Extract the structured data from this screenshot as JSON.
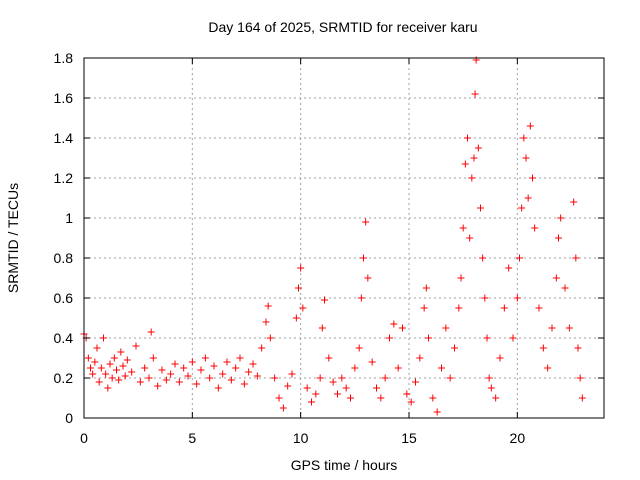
{
  "chart_data": {
    "type": "scatter",
    "title": "Day 164 of 2025, SRMTID for receiver karu",
    "xlabel": "GPS time / hours",
    "ylabel": "SRMTID / TECUs",
    "xlim": [
      0,
      24
    ],
    "ylim": [
      0,
      1.8
    ],
    "xticks": [
      0,
      5,
      10,
      15,
      20
    ],
    "xtick_labels": [
      "0",
      "5",
      "10",
      "15",
      "20"
    ],
    "yticks": [
      0,
      0.2,
      0.4,
      0.6,
      0.8,
      1.0,
      1.2,
      1.4,
      1.6,
      1.8
    ],
    "ytick_labels": [
      "0",
      "0.2",
      "0.4",
      "0.6",
      "0.8",
      "1",
      "1.2",
      "1.4",
      "1.6",
      "1.8"
    ],
    "grid": true,
    "marker": "+",
    "color": "#ff0000",
    "series": [
      {
        "name": "SRMTID",
        "points": [
          [
            0.0,
            0.42
          ],
          [
            0.1,
            0.4
          ],
          [
            0.2,
            0.3
          ],
          [
            0.3,
            0.25
          ],
          [
            0.4,
            0.22
          ],
          [
            0.5,
            0.28
          ],
          [
            0.6,
            0.35
          ],
          [
            0.7,
            0.18
          ],
          [
            0.8,
            0.25
          ],
          [
            0.9,
            0.4
          ],
          [
            1.0,
            0.22
          ],
          [
            1.1,
            0.15
          ],
          [
            1.2,
            0.27
          ],
          [
            1.3,
            0.2
          ],
          [
            1.4,
            0.3
          ],
          [
            1.5,
            0.24
          ],
          [
            1.6,
            0.19
          ],
          [
            1.7,
            0.33
          ],
          [
            1.8,
            0.26
          ],
          [
            1.9,
            0.21
          ],
          [
            2.0,
            0.29
          ],
          [
            2.2,
            0.23
          ],
          [
            2.4,
            0.36
          ],
          [
            2.6,
            0.18
          ],
          [
            2.8,
            0.25
          ],
          [
            3.0,
            0.2
          ],
          [
            3.1,
            0.43
          ],
          [
            3.2,
            0.3
          ],
          [
            3.4,
            0.16
          ],
          [
            3.6,
            0.24
          ],
          [
            3.8,
            0.19
          ],
          [
            4.0,
            0.22
          ],
          [
            4.2,
            0.27
          ],
          [
            4.4,
            0.18
          ],
          [
            4.6,
            0.25
          ],
          [
            4.8,
            0.21
          ],
          [
            5.0,
            0.28
          ],
          [
            5.2,
            0.17
          ],
          [
            5.4,
            0.24
          ],
          [
            5.6,
            0.3
          ],
          [
            5.8,
            0.2
          ],
          [
            6.0,
            0.26
          ],
          [
            6.2,
            0.15
          ],
          [
            6.4,
            0.22
          ],
          [
            6.6,
            0.28
          ],
          [
            6.8,
            0.19
          ],
          [
            7.0,
            0.25
          ],
          [
            7.2,
            0.3
          ],
          [
            7.4,
            0.17
          ],
          [
            7.6,
            0.23
          ],
          [
            7.8,
            0.27
          ],
          [
            8.0,
            0.21
          ],
          [
            8.2,
            0.35
          ],
          [
            8.4,
            0.48
          ],
          [
            8.5,
            0.56
          ],
          [
            8.6,
            0.4
          ],
          [
            8.8,
            0.2
          ],
          [
            9.0,
            0.1
          ],
          [
            9.2,
            0.05
          ],
          [
            9.4,
            0.16
          ],
          [
            9.6,
            0.22
          ],
          [
            9.8,
            0.5
          ],
          [
            9.9,
            0.65
          ],
          [
            10.0,
            0.75
          ],
          [
            10.1,
            0.55
          ],
          [
            10.3,
            0.15
          ],
          [
            10.5,
            0.08
          ],
          [
            10.7,
            0.12
          ],
          [
            10.9,
            0.2
          ],
          [
            11.0,
            0.45
          ],
          [
            11.1,
            0.59
          ],
          [
            11.3,
            0.3
          ],
          [
            11.5,
            0.18
          ],
          [
            11.7,
            0.12
          ],
          [
            11.9,
            0.2
          ],
          [
            12.1,
            0.15
          ],
          [
            12.3,
            0.1
          ],
          [
            12.5,
            0.25
          ],
          [
            12.7,
            0.35
          ],
          [
            12.8,
            0.6
          ],
          [
            12.9,
            0.8
          ],
          [
            13.0,
            0.98
          ],
          [
            13.1,
            0.7
          ],
          [
            13.3,
            0.28
          ],
          [
            13.5,
            0.15
          ],
          [
            13.7,
            0.1
          ],
          [
            13.9,
            0.2
          ],
          [
            14.1,
            0.4
          ],
          [
            14.3,
            0.47
          ],
          [
            14.5,
            0.25
          ],
          [
            14.7,
            0.45
          ],
          [
            14.9,
            0.12
          ],
          [
            15.1,
            0.08
          ],
          [
            15.3,
            0.18
          ],
          [
            15.5,
            0.3
          ],
          [
            15.7,
            0.55
          ],
          [
            15.8,
            0.65
          ],
          [
            15.9,
            0.4
          ],
          [
            16.1,
            0.1
          ],
          [
            16.3,
            0.03
          ],
          [
            16.5,
            0.25
          ],
          [
            16.7,
            0.45
          ],
          [
            16.9,
            0.2
          ],
          [
            17.1,
            0.35
          ],
          [
            17.3,
            0.55
          ],
          [
            17.4,
            0.7
          ],
          [
            17.5,
            0.95
          ],
          [
            17.6,
            1.27
          ],
          [
            17.7,
            1.4
          ],
          [
            17.8,
            0.9
          ],
          [
            17.9,
            1.2
          ],
          [
            18.0,
            1.3
          ],
          [
            18.05,
            1.62
          ],
          [
            18.1,
            1.79
          ],
          [
            18.2,
            1.35
          ],
          [
            18.3,
            1.05
          ],
          [
            18.4,
            0.8
          ],
          [
            18.5,
            0.6
          ],
          [
            18.6,
            0.4
          ],
          [
            18.7,
            0.2
          ],
          [
            18.8,
            0.15
          ],
          [
            19.0,
            0.1
          ],
          [
            19.2,
            0.3
          ],
          [
            19.4,
            0.55
          ],
          [
            19.6,
            0.75
          ],
          [
            19.8,
            0.4
          ],
          [
            20.0,
            0.6
          ],
          [
            20.1,
            0.8
          ],
          [
            20.2,
            1.05
          ],
          [
            20.3,
            1.4
          ],
          [
            20.4,
            1.3
          ],
          [
            20.5,
            1.1
          ],
          [
            20.6,
            1.46
          ],
          [
            20.7,
            1.2
          ],
          [
            20.8,
            0.95
          ],
          [
            21.0,
            0.55
          ],
          [
            21.2,
            0.35
          ],
          [
            21.4,
            0.25
          ],
          [
            21.6,
            0.45
          ],
          [
            21.8,
            0.7
          ],
          [
            21.9,
            0.9
          ],
          [
            22.0,
            1.0
          ],
          [
            22.2,
            0.65
          ],
          [
            22.4,
            0.45
          ],
          [
            22.6,
            1.08
          ],
          [
            22.7,
            0.8
          ],
          [
            22.8,
            0.35
          ],
          [
            22.9,
            0.2
          ],
          [
            23.0,
            0.1
          ]
        ]
      }
    ]
  }
}
